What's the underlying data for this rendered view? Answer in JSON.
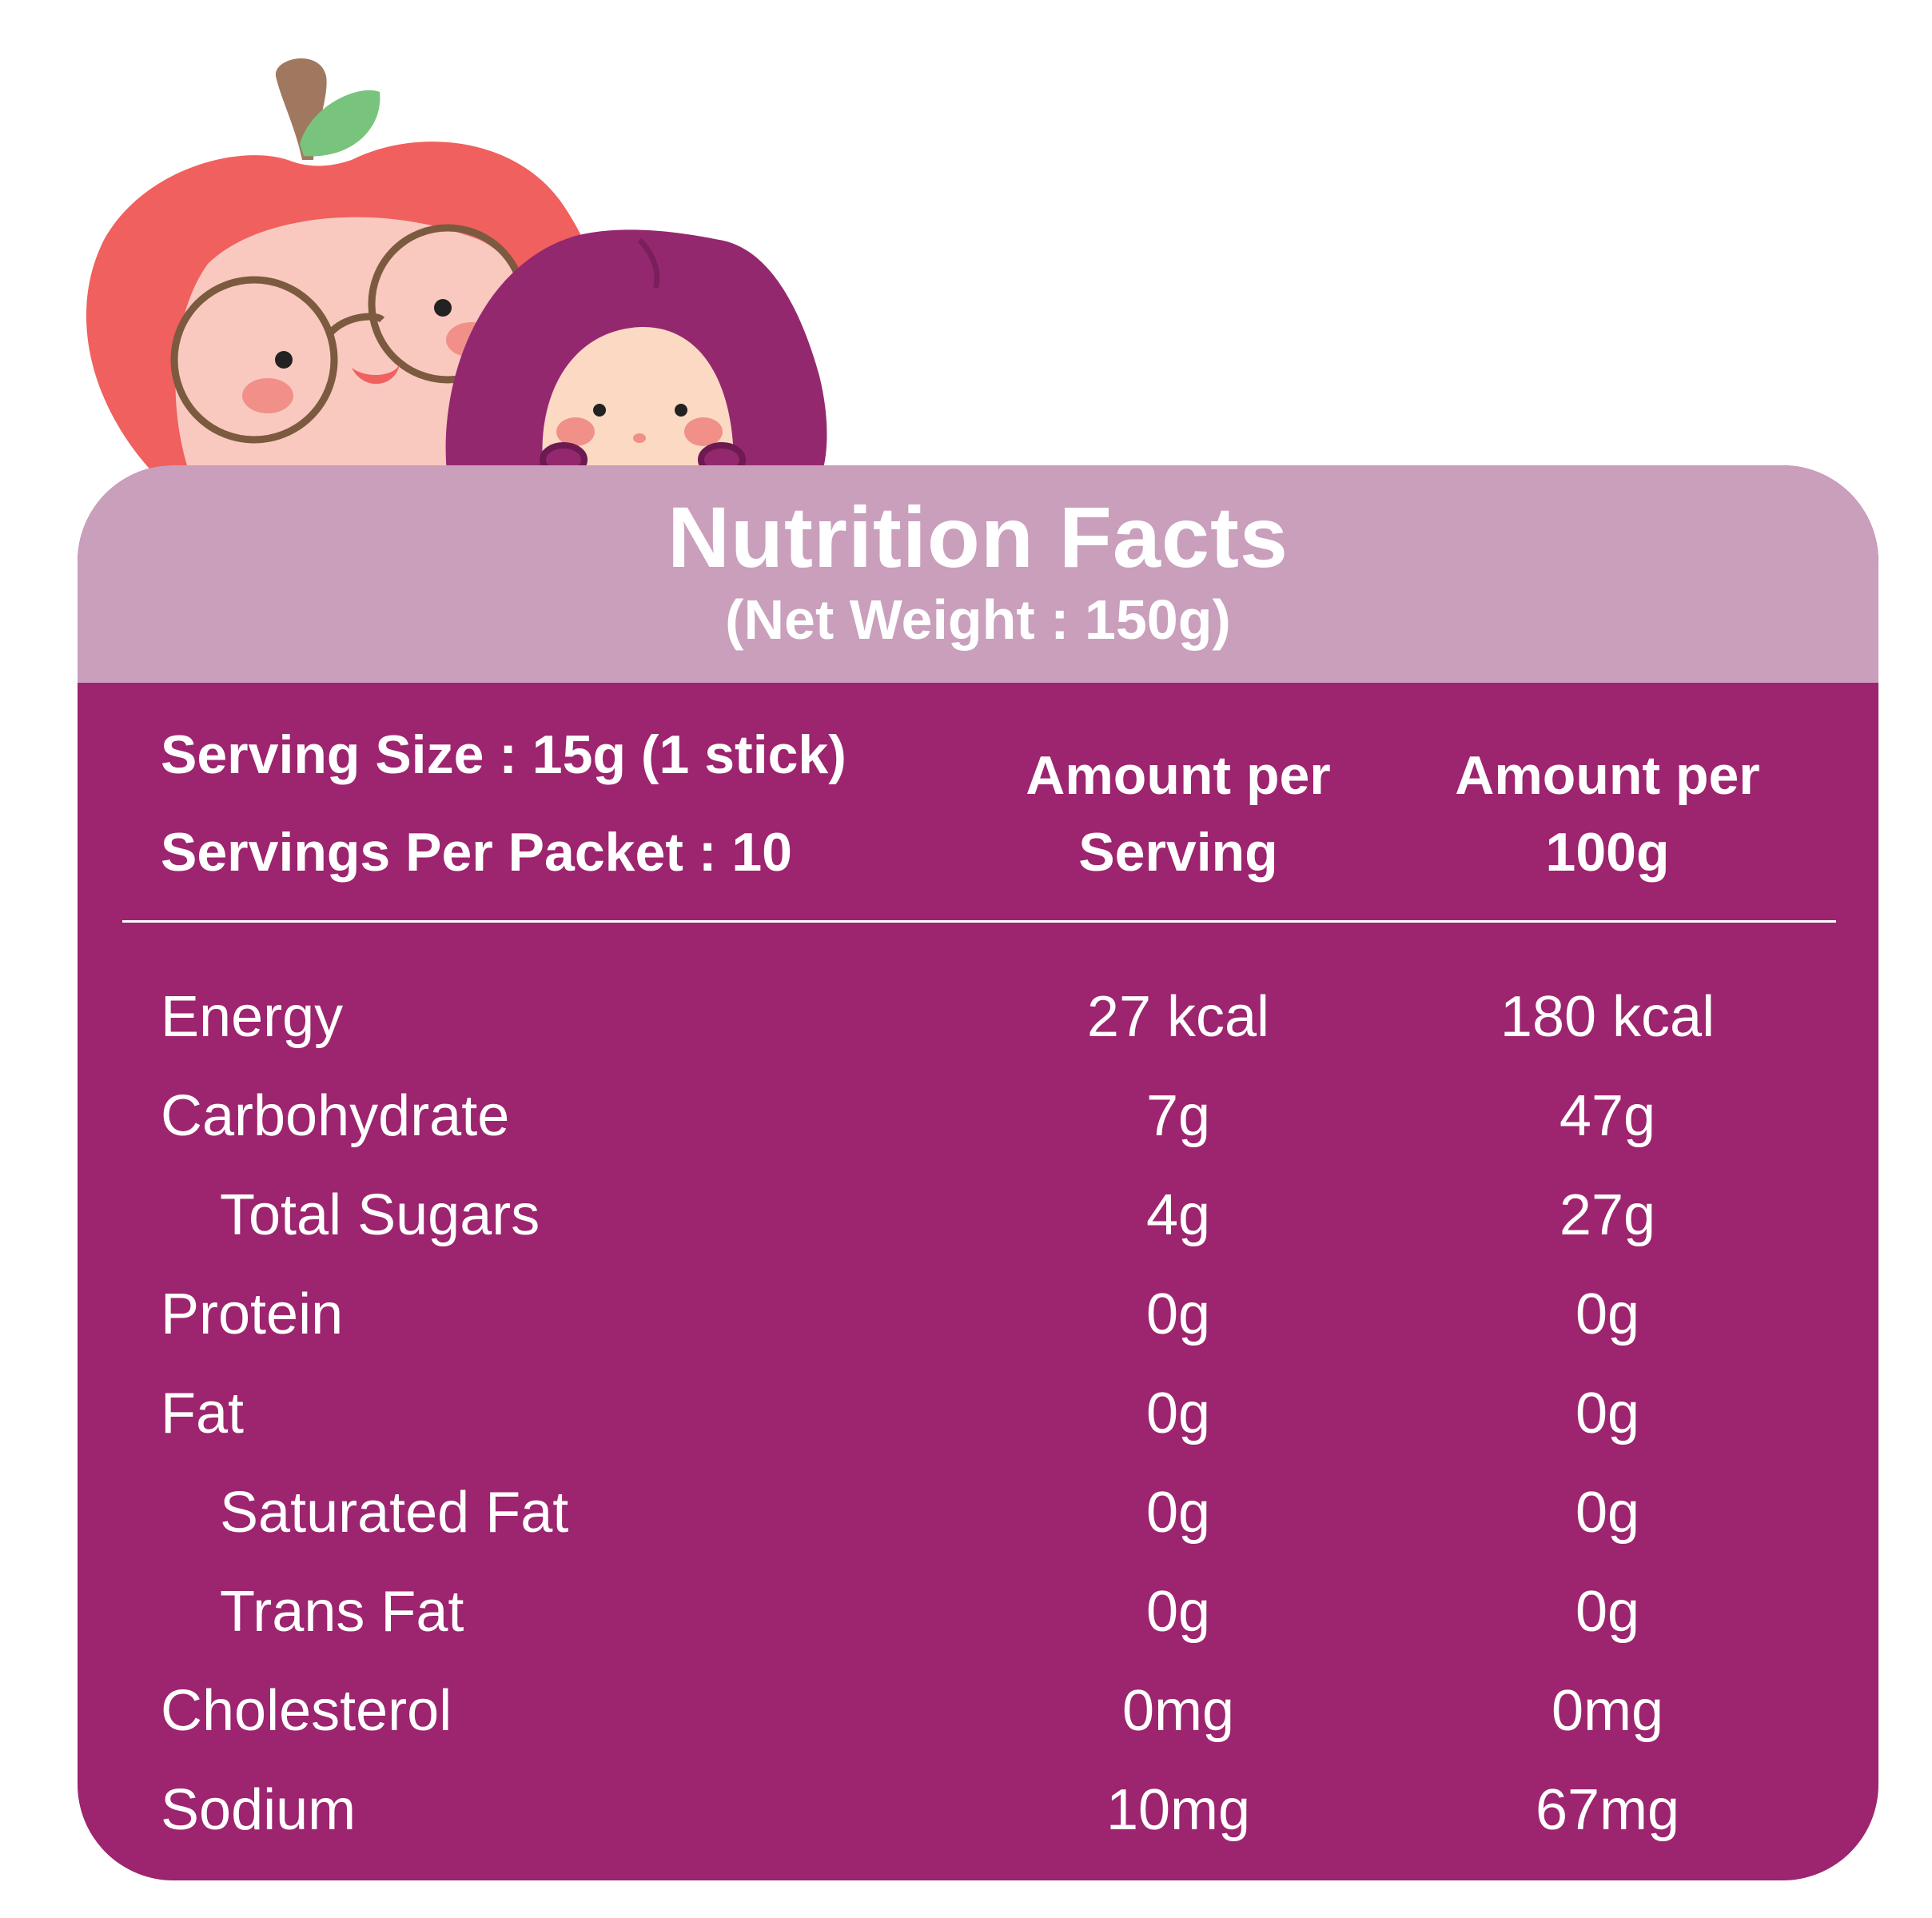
{
  "header": {
    "title": "Nutrition Facts",
    "subtitle": "(Net Weight : 150g)"
  },
  "serving_info": {
    "serving_size": "Serving Size : 15g (1 stick)",
    "servings_per_packet": "Servings Per Packet : 10"
  },
  "columns": {
    "per_serving": [
      "Amount per",
      "Serving"
    ],
    "per_100g": [
      "Amount per",
      "100g"
    ]
  },
  "nutrients": [
    {
      "label": "Energy",
      "per_serving": "27 kcal",
      "per_100g": "180 kcal",
      "indent": false
    },
    {
      "label": "Carbohydrate",
      "per_serving": "7g",
      "per_100g": "47g",
      "indent": false
    },
    {
      "label": "Total Sugars",
      "per_serving": "4g",
      "per_100g": "27g",
      "indent": true
    },
    {
      "label": "Protein",
      "per_serving": "0g",
      "per_100g": "0g",
      "indent": false
    },
    {
      "label": "Fat",
      "per_serving": "0g",
      "per_100g": "0g",
      "indent": false
    },
    {
      "label": "Saturated Fat",
      "per_serving": "0g",
      "per_100g": "0g",
      "indent": true
    },
    {
      "label": "Trans Fat",
      "per_serving": "0g",
      "per_100g": "0g",
      "indent": true
    },
    {
      "label": "Cholesterol",
      "per_serving": "0mg",
      "per_100g": "0mg",
      "indent": false
    },
    {
      "label": "Sodium",
      "per_serving": "10mg",
      "per_100g": "67mg",
      "indent": false
    }
  ],
  "colors": {
    "card_body": "#9d246e",
    "card_header": "#c99fbc",
    "apple_red": "#f0605e",
    "apple_face": "#f9c9c0",
    "plum_purple": "#94286f",
    "plum_face": "#fcd9c3",
    "leaf_green": "#79c47d",
    "stem_brown": "#a07860",
    "glasses_brown": "#7b5a3f",
    "blush": "#f09088"
  },
  "illustration": {
    "icons": [
      "apple-mascot-icon",
      "plum-mascot-icon"
    ]
  }
}
